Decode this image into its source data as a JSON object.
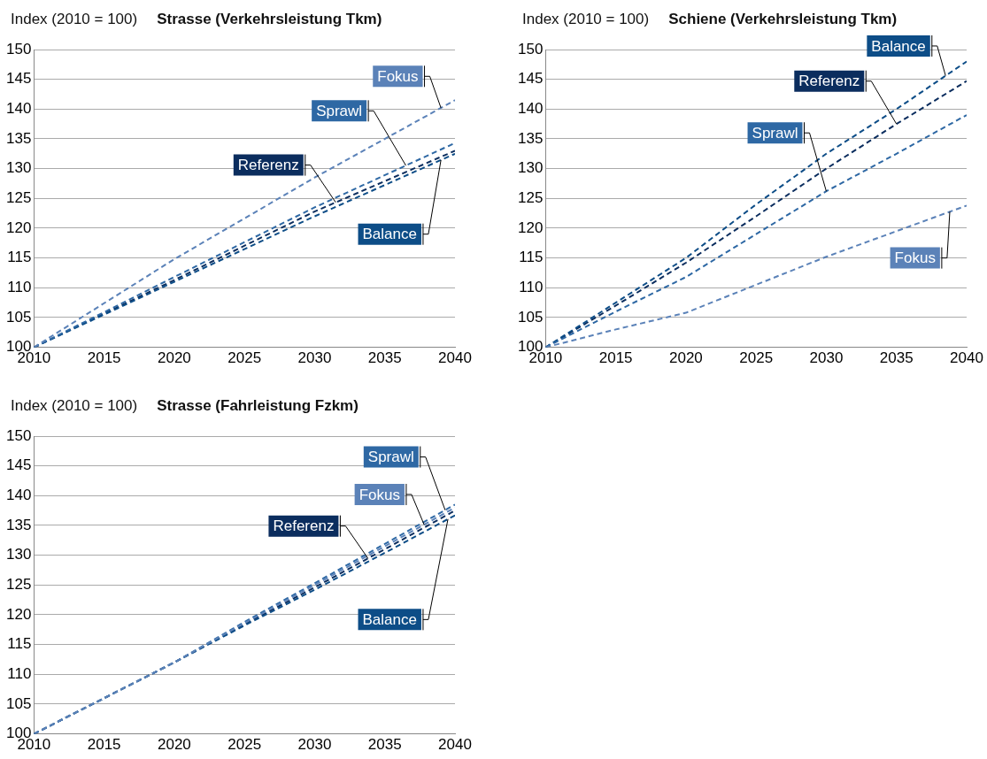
{
  "chart_data": [
    {
      "type": "line",
      "title": "Strasse (Verkehrsleistung Tkm)",
      "ylabel": "Index (2010 = 100)",
      "x": [
        2010,
        2020,
        2030,
        2040
      ],
      "xlim": [
        2010,
        2040
      ],
      "xticks": [
        2010,
        2015,
        2020,
        2025,
        2030,
        2035,
        2040
      ],
      "ylim": [
        100,
        150
      ],
      "yticks": [
        100,
        105,
        110,
        115,
        120,
        125,
        130,
        135,
        140,
        145,
        150
      ],
      "grid": "y",
      "marker": "none",
      "line_style": "dashed",
      "series": [
        {
          "name": "Referenz",
          "color": "#0b2d5e",
          "values": [
            100,
            111.3,
            122.8,
            133
          ]
        },
        {
          "name": "Balance",
          "color": "#0d4d87",
          "values": [
            100,
            111,
            122,
            132.5
          ]
        },
        {
          "name": "Sprawl",
          "color": "#2e68a4",
          "values": [
            100,
            111.8,
            123.5,
            134.3
          ]
        },
        {
          "name": "Fokus",
          "color": "#5b82b8",
          "values": [
            100,
            114.8,
            128.5,
            141.5
          ]
        }
      ]
    },
    {
      "type": "line",
      "title": "Schiene (Verkehrsleistung Tkm)",
      "ylabel": "Index (2010 = 100)",
      "x": [
        2010,
        2015,
        2020,
        2025,
        2030,
        2035,
        2040
      ],
      "xlim": [
        2010,
        2040
      ],
      "xticks": [
        2010,
        2015,
        2020,
        2025,
        2030,
        2035,
        2040
      ],
      "ylim": [
        100,
        150
      ],
      "yticks": [
        100,
        105,
        110,
        115,
        120,
        125,
        130,
        135,
        140,
        145,
        150
      ],
      "grid": "y",
      "marker": "none",
      "line_style": "dashed",
      "series": [
        {
          "name": "Referenz",
          "color": "#0b2d5e",
          "values": [
            100,
            107,
            114.2,
            122,
            130,
            137.5,
            144.7
          ]
        },
        {
          "name": "Balance",
          "color": "#0d4d87",
          "values": [
            100,
            107.5,
            115,
            124,
            132.5,
            140,
            148
          ]
        },
        {
          "name": "Sprawl",
          "color": "#2e68a4",
          "values": [
            100,
            106,
            111.8,
            119,
            126.2,
            132.5,
            139
          ]
        },
        {
          "name": "Fokus",
          "color": "#5b82b8",
          "values": [
            100,
            103,
            105.8,
            110.5,
            115.2,
            119.5,
            123.8
          ]
        }
      ]
    },
    {
      "type": "line",
      "title": "Strasse (Fahrleistung Fzkm)",
      "ylabel": "Index (2010 = 100)",
      "x": [
        2010,
        2020,
        2025,
        2030,
        2035,
        2040
      ],
      "xlim": [
        2010,
        2040
      ],
      "xticks": [
        2010,
        2015,
        2020,
        2025,
        2030,
        2035,
        2040
      ],
      "ylim": [
        100,
        150
      ],
      "yticks": [
        100,
        105,
        110,
        115,
        120,
        125,
        130,
        135,
        140,
        145,
        150
      ],
      "grid": "y",
      "marker": "none",
      "line_style": "dashed",
      "series": [
        {
          "name": "Referenz",
          "color": "#0b2d5e",
          "values": [
            100,
            112,
            118.4,
            124.6,
            131,
            137.5
          ]
        },
        {
          "name": "Balance",
          "color": "#0d4d87",
          "values": [
            100,
            112,
            118.2,
            124.2,
            130.4,
            136.7
          ]
        },
        {
          "name": "Sprawl",
          "color": "#2e68a4",
          "values": [
            100,
            112,
            118.8,
            125.3,
            131.9,
            138.5
          ]
        },
        {
          "name": "Fokus",
          "color": "#5b82b8",
          "values": [
            100,
            112,
            118.6,
            125,
            131.5,
            138
          ]
        }
      ]
    }
  ]
}
